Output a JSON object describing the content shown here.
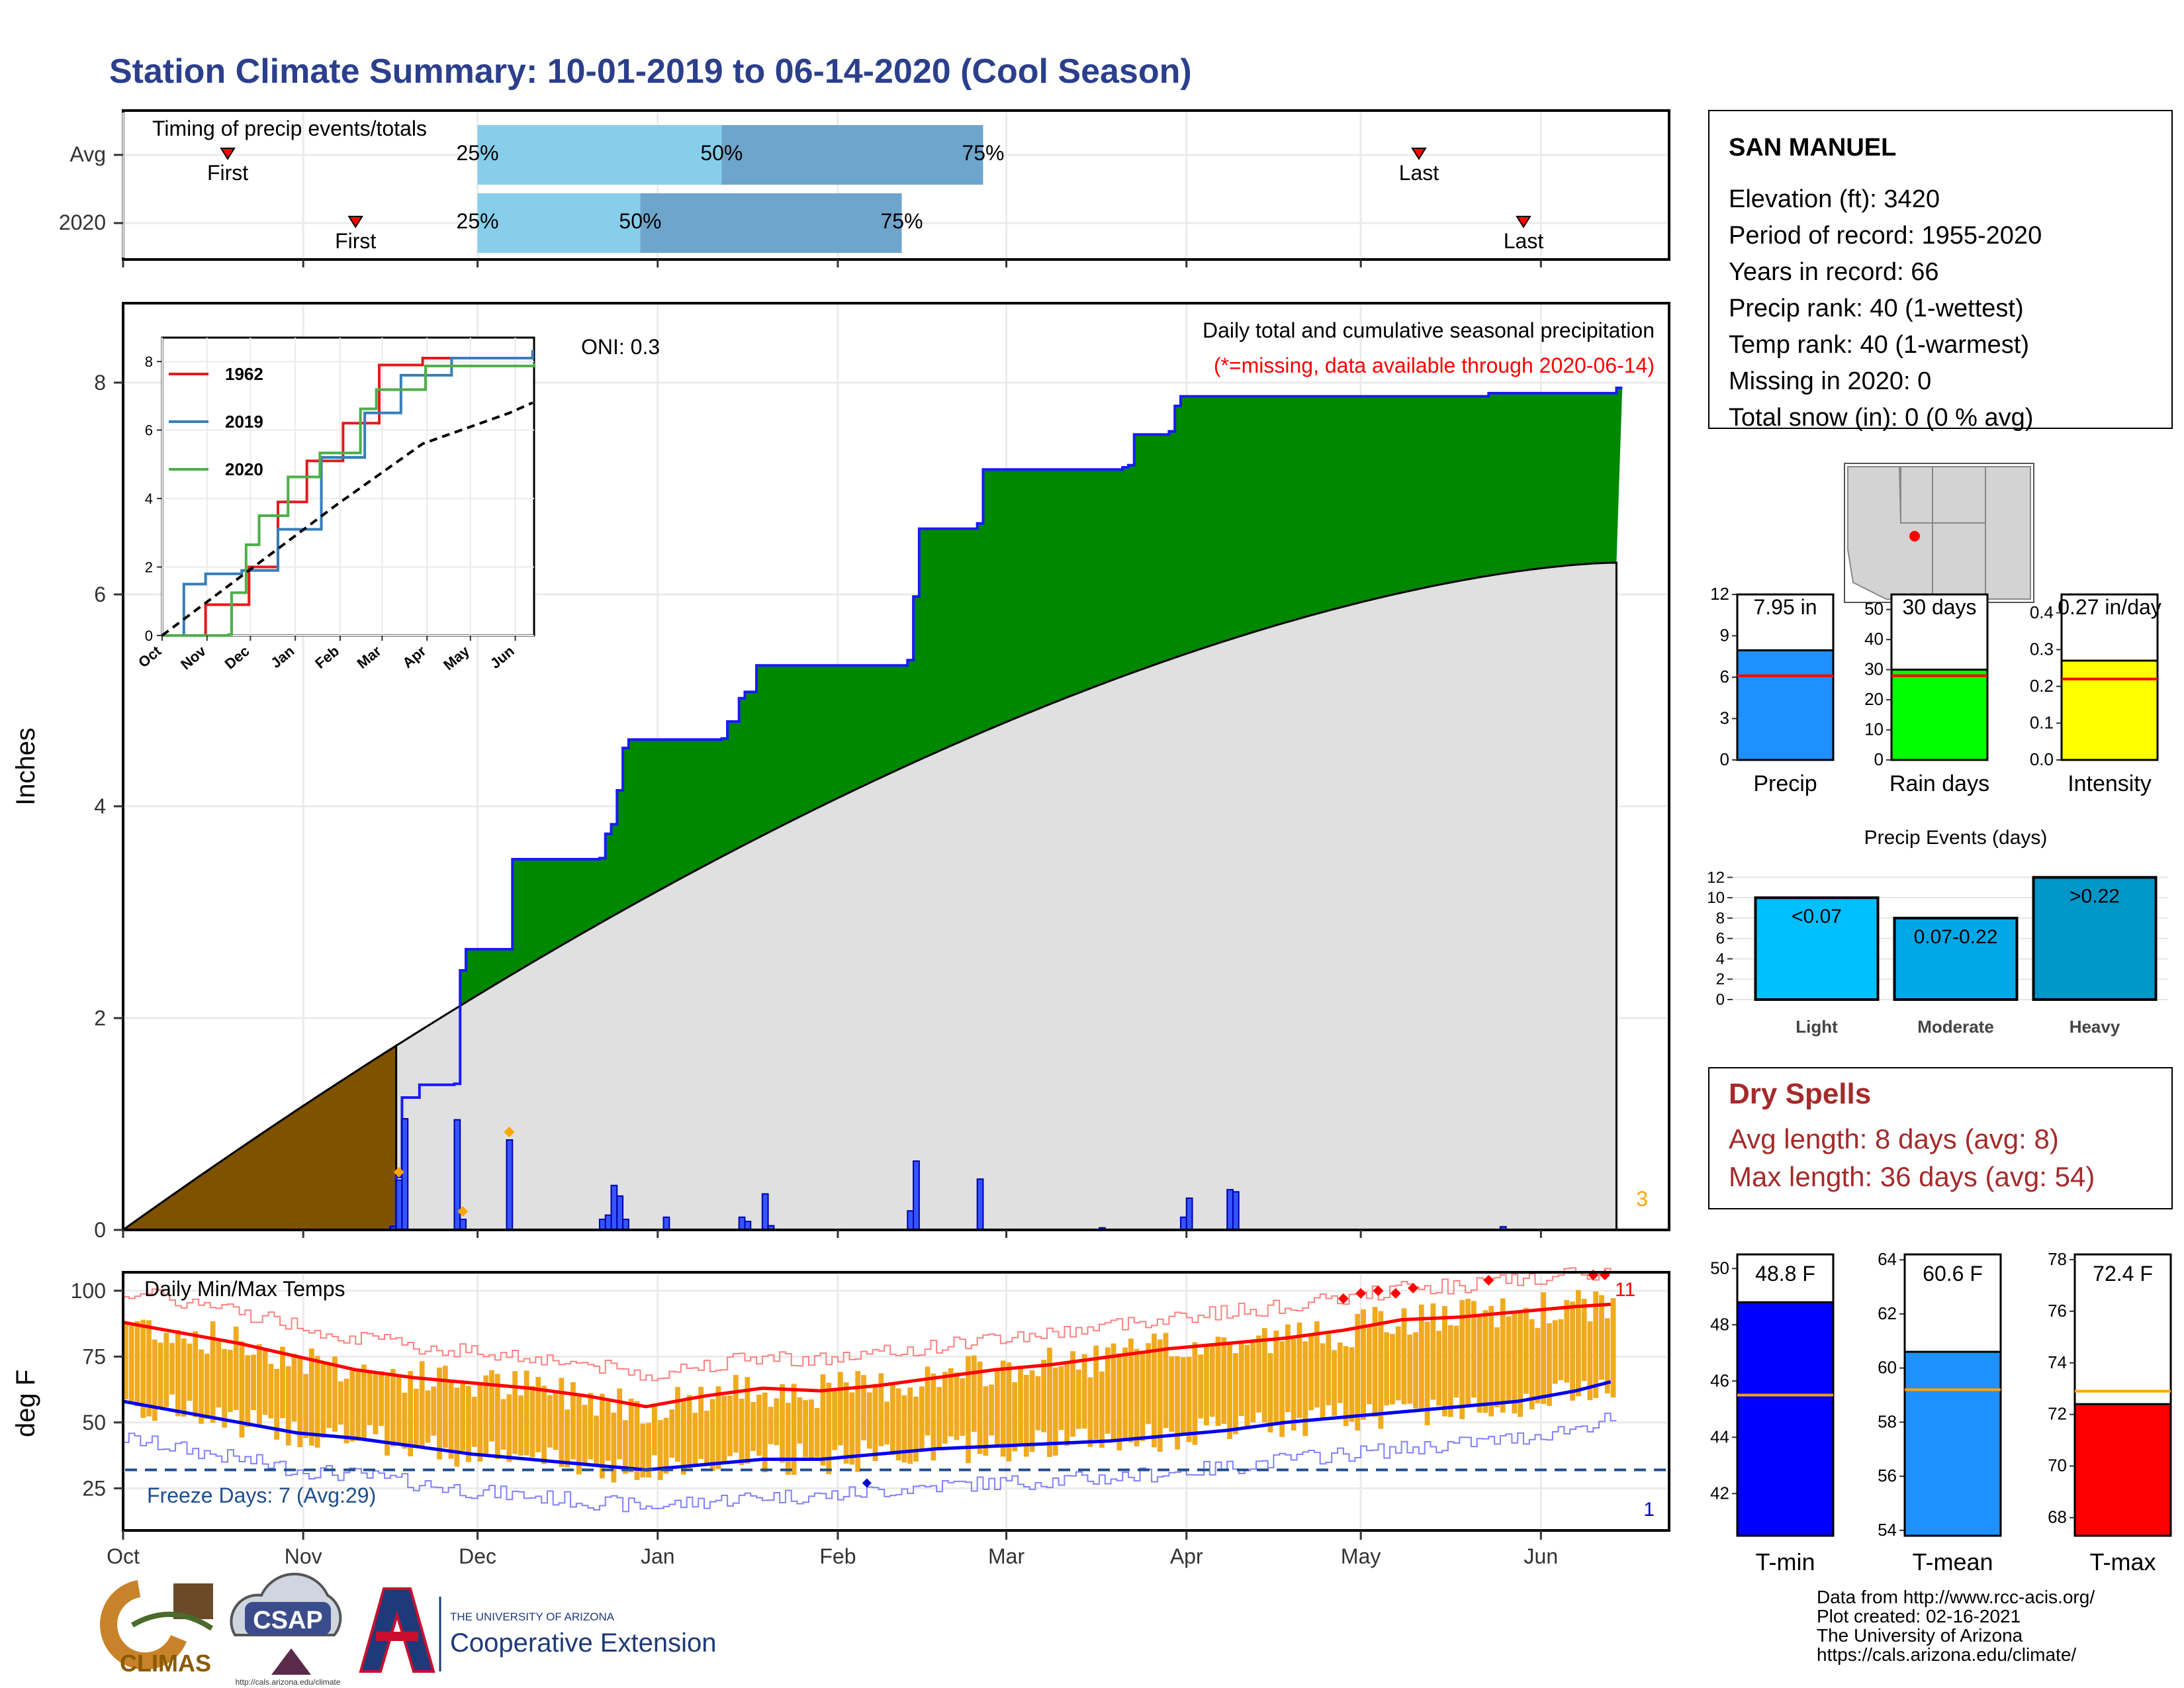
{
  "title": "Station Climate Summary: 10-01-2019 to 06-14-2020 (Cool Season)",
  "colors": {
    "title": "#2b3f8c",
    "precip_cum": "#008800",
    "precip_line": "#1a1aff",
    "avg_fill": "#e0e0e0",
    "prior_fill": "#7f5200",
    "timing_light": "#87ceeb",
    "timing_dark": "#6ea5cc",
    "temp_bar": "#f0aa1e",
    "tmax_line": "#ff0000",
    "tmin_line": "#0000ee",
    "freeze_line": "#1f4e8c",
    "dry_spell": "#a52a2a",
    "missing_note": "#ff0000"
  },
  "month_labels": [
    "Oct",
    "Nov",
    "Dec",
    "Jan",
    "Feb",
    "Mar",
    "Apr",
    "May",
    "Jun"
  ],
  "timing": {
    "label": "Timing of precip events/totals",
    "rows": [
      {
        "name": "Avg",
        "first_day": 18,
        "last_day": 223,
        "p25_day": 61,
        "p50_day": 103,
        "p75_day": 148,
        "first_label": "First",
        "last_label": "Last",
        "p25_label": "25%",
        "p50_label": "50%",
        "p75_label": "75%"
      },
      {
        "name": "2020",
        "first_day": 40,
        "last_day": 241,
        "p25_day": 61,
        "p50_day": 89,
        "p75_day": 134,
        "first_label": "First",
        "last_label": "Last",
        "p25_label": "25%",
        "p50_label": "50%",
        "p75_label": "75%"
      }
    ]
  },
  "main_panel": {
    "ylabel": "Inches",
    "y_ticks": [
      "0",
      "2",
      "4",
      "6",
      "8"
    ],
    "oni": "ONI: 0.3",
    "header": "Daily total and cumulative seasonal precipitation",
    "missing_note": "(*=missing, data available through 2020-06-14)",
    "corner_count": "3"
  },
  "inset": {
    "series_names": [
      "1962",
      "2019",
      "2020"
    ],
    "series_colors": [
      "#e41a1c",
      "#377eb8",
      "#4daf4a"
    ],
    "y_ticks": [
      "0",
      "2",
      "4",
      "6",
      "8"
    ],
    "x_ticks": [
      "Oct",
      "Nov",
      "Dec",
      "Jan",
      "Feb",
      "Mar",
      "Apr",
      "May",
      "Jun"
    ]
  },
  "temp_panel": {
    "ylabel": "deg F",
    "label": "Daily Min/Max Temps",
    "y_ticks": [
      "25",
      "50",
      "75",
      "100"
    ],
    "freeze": "Freeze Days: 7 (Avg:29)",
    "top_count": "11",
    "bottom_count": "1"
  },
  "station": {
    "name": "SAN MANUEL",
    "lines": [
      "Elevation (ft): 3420",
      "Period of record: 1955-2020",
      "Years in record: 66",
      "Precip rank: 40 (1-wettest)",
      "Temp rank: 40 (1-warmest)",
      "Missing in 2020: 0",
      "Total snow (in): 0 (0 % avg)"
    ]
  },
  "mini_bars": [
    {
      "label": "Precip",
      "value_text": "7.95 in",
      "value": 7.95,
      "avg": 6.1,
      "ymax": 12,
      "ticks": [
        "0",
        "3",
        "6",
        "9",
        "12"
      ],
      "color": "#1e90ff"
    },
    {
      "label": "Rain days",
      "value_text": "30 days",
      "value": 30,
      "avg": 28,
      "ymax": 55,
      "ticks": [
        "0",
        "10",
        "20",
        "30",
        "40",
        "50"
      ],
      "color": "#00ff00"
    },
    {
      "label": "Intensity",
      "value_text": "0.27 in/day",
      "value": 0.27,
      "avg": 0.22,
      "ymax": 0.45,
      "ticks": [
        "0.0",
        "0.1",
        "0.2",
        "0.3",
        "0.4"
      ],
      "color": "#ffff00"
    }
  ],
  "events": {
    "title": "Precip Events (days)",
    "ticks": [
      "0",
      "2",
      "4",
      "6",
      "8",
      "10",
      "12"
    ],
    "bars": [
      {
        "category": "Light",
        "label": "<0.07",
        "value": 10,
        "color": "#00bfff"
      },
      {
        "category": "Moderate",
        "label": "0.07-0.22",
        "value": 8,
        "color": "#00a8e8"
      },
      {
        "category": "Heavy",
        "label": ">0.22",
        "value": 12,
        "color": "#0096c7"
      }
    ]
  },
  "dry_spells": {
    "title": "Dry Spells",
    "avg": "Avg length: 8 days (avg: 8)",
    "max": "Max length: 36 days (avg: 54)"
  },
  "temp_bars": [
    {
      "label": "T-min",
      "value_text": "48.8 F",
      "value": 48.8,
      "avg": 45.5,
      "ymin": 40.5,
      "ymax": 50.5,
      "ticks": [
        "42",
        "44",
        "46",
        "48",
        "50"
      ],
      "color": "#0000ff"
    },
    {
      "label": "T-mean",
      "value_text": "60.6 F",
      "value": 60.6,
      "avg": 59.2,
      "ymin": 53.8,
      "ymax": 64.2,
      "ticks": [
        "54",
        "56",
        "58",
        "60",
        "62",
        "64"
      ],
      "color": "#1e90ff"
    },
    {
      "label": "T-max",
      "value_text": "72.4 F",
      "value": 72.4,
      "avg": 72.9,
      "ymin": 67.3,
      "ymax": 78.2,
      "ticks": [
        "68",
        "70",
        "72",
        "74",
        "76",
        "78"
      ],
      "color": "#ff0000"
    }
  ],
  "footer": {
    "lines": [
      "Data from http://www.rcc-acis.org/",
      "Plot created: 02-16-2021",
      "The University of Arizona",
      "https://cals.arizona.edu/climate/"
    ],
    "logo_climas": "CLIMAS",
    "logo_csap": "CSAP",
    "logo_csap_url": "http://cals.arizona.edu/climate",
    "ua_small": "THE UNIVERSITY OF ARIZONA",
    "ua_big": "Cooperative Extension"
  },
  "chart_data": [
    {
      "type": "area",
      "title": "Daily total and cumulative seasonal precipitation",
      "ylabel": "Inches",
      "ylim": [
        0,
        8.7
      ],
      "x_unit": "days since Oct 1",
      "cumulative_2020_steps": [
        [
          0,
          0
        ],
        [
          46,
          0.03
        ],
        [
          47,
          0.5
        ],
        [
          48,
          1.25
        ],
        [
          51,
          1.37
        ],
        [
          57,
          1.38
        ],
        [
          58,
          2.45
        ],
        [
          59,
          2.65
        ],
        [
          66,
          2.65
        ],
        [
          67,
          3.5
        ],
        [
          82,
          3.51
        ],
        [
          83,
          3.74
        ],
        [
          84,
          3.83
        ],
        [
          85,
          4.15
        ],
        [
          86,
          4.55
        ],
        [
          87,
          4.63
        ],
        [
          103,
          4.64
        ],
        [
          104,
          4.8
        ],
        [
          106,
          5.02
        ],
        [
          107,
          5.08
        ],
        [
          109,
          5.33
        ],
        [
          135,
          5.38
        ],
        [
          136,
          5.98
        ],
        [
          137,
          6.62
        ],
        [
          147,
          6.67
        ],
        [
          148,
          7.18
        ],
        [
          172,
          7.2
        ],
        [
          173,
          7.22
        ],
        [
          174,
          7.51
        ],
        [
          180,
          7.54
        ],
        [
          181,
          7.78
        ],
        [
          182,
          7.87
        ],
        [
          235,
          7.9
        ],
        [
          257,
          7.95
        ]
      ],
      "average_cumulative_end": 6.3,
      "daily_precip": [
        [
          46,
          0.03
        ],
        [
          47,
          0.47
        ],
        [
          48,
          1.05
        ],
        [
          57,
          1.04
        ],
        [
          58,
          0.1
        ],
        [
          66,
          0.85
        ],
        [
          82,
          0.1
        ],
        [
          83,
          0.14
        ],
        [
          84,
          0.42
        ],
        [
          85,
          0.32
        ],
        [
          86,
          0.1
        ],
        [
          93,
          0.12
        ],
        [
          106,
          0.12
        ],
        [
          107,
          0.08
        ],
        [
          110,
          0.34
        ],
        [
          111,
          0.04
        ],
        [
          135,
          0.18
        ],
        [
          136,
          0.65
        ],
        [
          147,
          0.48
        ],
        [
          168,
          0.02
        ],
        [
          182,
          0.12
        ],
        [
          183,
          0.3
        ],
        [
          190,
          0.38
        ],
        [
          191,
          0.36
        ],
        [
          237,
          0.03
        ]
      ],
      "annotations": [
        "ONI: 0.3"
      ]
    },
    {
      "type": "line",
      "title": "",
      "x": [
        "Oct",
        "Nov",
        "Dec",
        "Jan",
        "Feb",
        "Mar",
        "Apr",
        "May",
        "Jun"
      ],
      "ylim": [
        0,
        8.5
      ],
      "series": [
        {
          "name": "1962",
          "points": [
            [
              0,
              0
            ],
            [
              30,
              0.9
            ],
            [
              60,
              2
            ],
            [
              80,
              3.9
            ],
            [
              100,
              5.1
            ],
            [
              125,
              6.2
            ],
            [
              150,
              7.9
            ],
            [
              180,
              8.1
            ],
            [
              256,
              8.2
            ]
          ]
        },
        {
          "name": "2019",
          "points": [
            [
              0,
              0
            ],
            [
              15,
              1.5
            ],
            [
              30,
              1.8
            ],
            [
              55,
              1.9
            ],
            [
              80,
              3.1
            ],
            [
              110,
              5.2
            ],
            [
              140,
              6.5
            ],
            [
              165,
              7.6
            ],
            [
              200,
              8.1
            ],
            [
              256,
              8.3
            ]
          ]
        },
        {
          "name": "2020",
          "points": [
            [
              0,
              0
            ],
            [
              46,
              0.03
            ],
            [
              48,
              1.25
            ],
            [
              58,
              2.65
            ],
            [
              67,
              3.5
            ],
            [
              87,
              4.63
            ],
            [
              109,
              5.33
            ],
            [
              137,
              6.62
            ],
            [
              148,
              7.18
            ],
            [
              182,
              7.87
            ],
            [
              257,
              7.95
            ]
          ]
        },
        {
          "name": "average",
          "points": [
            [
              0,
              0
            ],
            [
              60,
              1.9
            ],
            [
              120,
              3.8
            ],
            [
              180,
              5.6
            ],
            [
              240,
              6.5
            ],
            [
              256,
              6.8
            ]
          ]
        }
      ]
    },
    {
      "type": "bar",
      "title": "Daily Min/Max Temps",
      "ylabel": "deg F",
      "ylim": [
        9,
        107
      ],
      "x_unit": "days since Oct 1",
      "tmax": [
        [
          0,
          88
        ],
        [
          10,
          84
        ],
        [
          20,
          80
        ],
        [
          30,
          75
        ],
        [
          40,
          70
        ],
        [
          50,
          67
        ],
        [
          60,
          65
        ],
        [
          70,
          63
        ],
        [
          80,
          60
        ],
        [
          90,
          56
        ],
        [
          100,
          60
        ],
        [
          110,
          63
        ],
        [
          120,
          62
        ],
        [
          130,
          64
        ],
        [
          140,
          67
        ],
        [
          150,
          70
        ],
        [
          160,
          72
        ],
        [
          170,
          75
        ],
        [
          180,
          78
        ],
        [
          190,
          80
        ],
        [
          200,
          82
        ],
        [
          210,
          85
        ],
        [
          220,
          89
        ],
        [
          230,
          90
        ],
        [
          240,
          92
        ],
        [
          250,
          94
        ],
        [
          257,
          95
        ]
      ],
      "tmin": [
        [
          0,
          58
        ],
        [
          10,
          54
        ],
        [
          20,
          50
        ],
        [
          30,
          46
        ],
        [
          40,
          44
        ],
        [
          50,
          41
        ],
        [
          60,
          38
        ],
        [
          70,
          36
        ],
        [
          80,
          34
        ],
        [
          90,
          32
        ],
        [
          100,
          34
        ],
        [
          110,
          36
        ],
        [
          120,
          36
        ],
        [
          130,
          38
        ],
        [
          140,
          40
        ],
        [
          150,
          41
        ],
        [
          160,
          42
        ],
        [
          170,
          43
        ],
        [
          180,
          45
        ],
        [
          190,
          47
        ],
        [
          200,
          50
        ],
        [
          210,
          52
        ],
        [
          220,
          54
        ],
        [
          230,
          56
        ],
        [
          240,
          58
        ],
        [
          250,
          62
        ],
        [
          257,
          66
        ]
      ],
      "freeze_threshold": 32
    }
  ]
}
